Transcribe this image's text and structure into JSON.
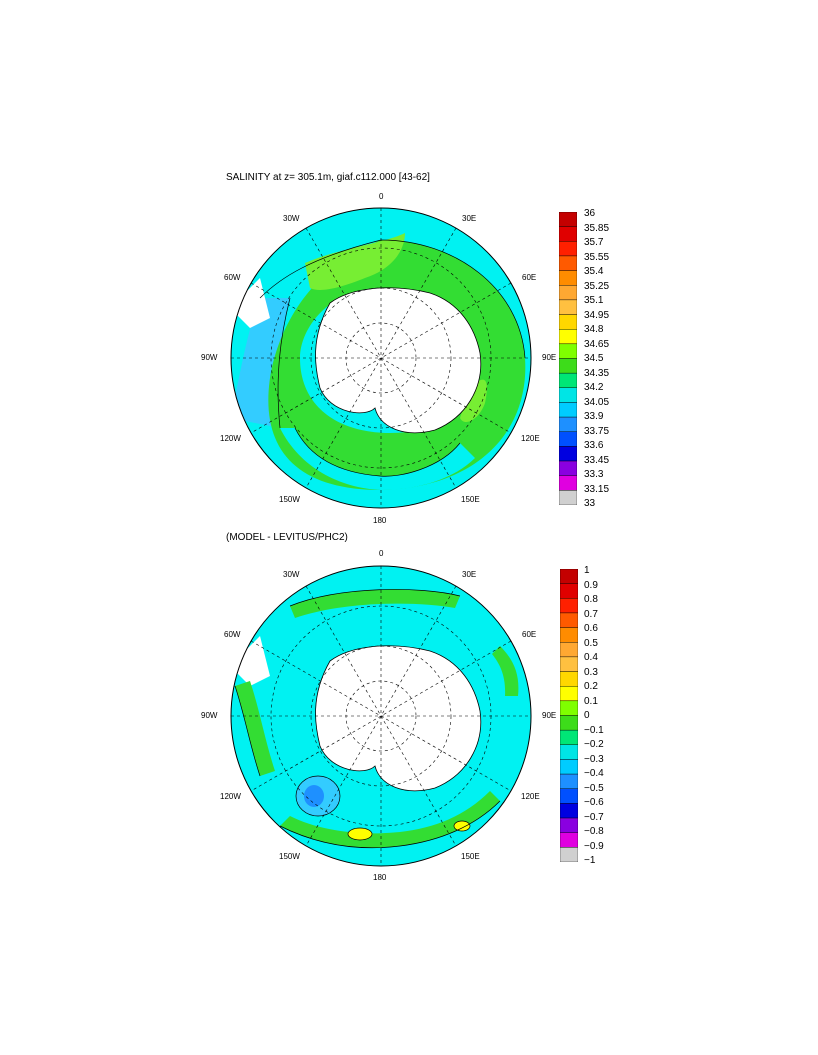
{
  "panel1": {
    "title": "SALINITY at z= 305.1m, giaf.c112.000 [43-62]",
    "lon_labels": {
      "top": "0",
      "nw": "30W",
      "ne": "30E",
      "wnw": "60W",
      "ene": "60E",
      "w": "90W",
      "e": "90E",
      "wsw": "120W",
      "ese": "120E",
      "sw": "150W",
      "se": "150E",
      "bottom": "180"
    },
    "colorbar": {
      "levels": [
        "36",
        "35.85",
        "35.7",
        "35.55",
        "35.4",
        "35.25",
        "35.1",
        "34.95",
        "34.8",
        "34.65",
        "34.5",
        "34.35",
        "34.2",
        "34.05",
        "33.9",
        "33.75",
        "33.6",
        "33.45",
        "33.3",
        "33.15",
        "33"
      ],
      "colors": [
        "#c40000",
        "#e00000",
        "#ff2000",
        "#ff5a00",
        "#ff8c00",
        "#ffa832",
        "#ffc040",
        "#ffd700",
        "#ffff00",
        "#7fff00",
        "#3ddc1a",
        "#00e676",
        "#00e5e5",
        "#00ccff",
        "#1e90ff",
        "#0050ff",
        "#0000e0",
        "#8a00e0",
        "#e000e0",
        "#d0d0d0",
        "#707070"
      ]
    }
  },
  "panel2": {
    "title": "(MODEL - LEVITUS/PHC2)",
    "lon_labels": {
      "top": "0",
      "nw": "30W",
      "ne": "30E",
      "wnw": "60W",
      "ene": "60E",
      "w": "90W",
      "e": "90E",
      "wsw": "120W",
      "ese": "120E",
      "sw": "150W",
      "se": "150E",
      "bottom": "180"
    },
    "colorbar": {
      "levels": [
        "1",
        "0.9",
        "0.8",
        "0.7",
        "0.6",
        "0.5",
        "0.4",
        "0.3",
        "0.2",
        "0.1",
        "0",
        "−0.1",
        "−0.2",
        "−0.3",
        "−0.4",
        "−0.5",
        "−0.6",
        "−0.7",
        "−0.8",
        "−0.9",
        "−1"
      ],
      "colors": [
        "#c40000",
        "#e00000",
        "#ff2000",
        "#ff5a00",
        "#ff8c00",
        "#ffa832",
        "#ffc040",
        "#ffd700",
        "#ffff00",
        "#7fff00",
        "#3ddc1a",
        "#00e676",
        "#00e5e5",
        "#00ccff",
        "#1e90ff",
        "#0050ff",
        "#0000e0",
        "#8a00e0",
        "#e000e0",
        "#d0d0d0",
        "#707070"
      ]
    }
  }
}
